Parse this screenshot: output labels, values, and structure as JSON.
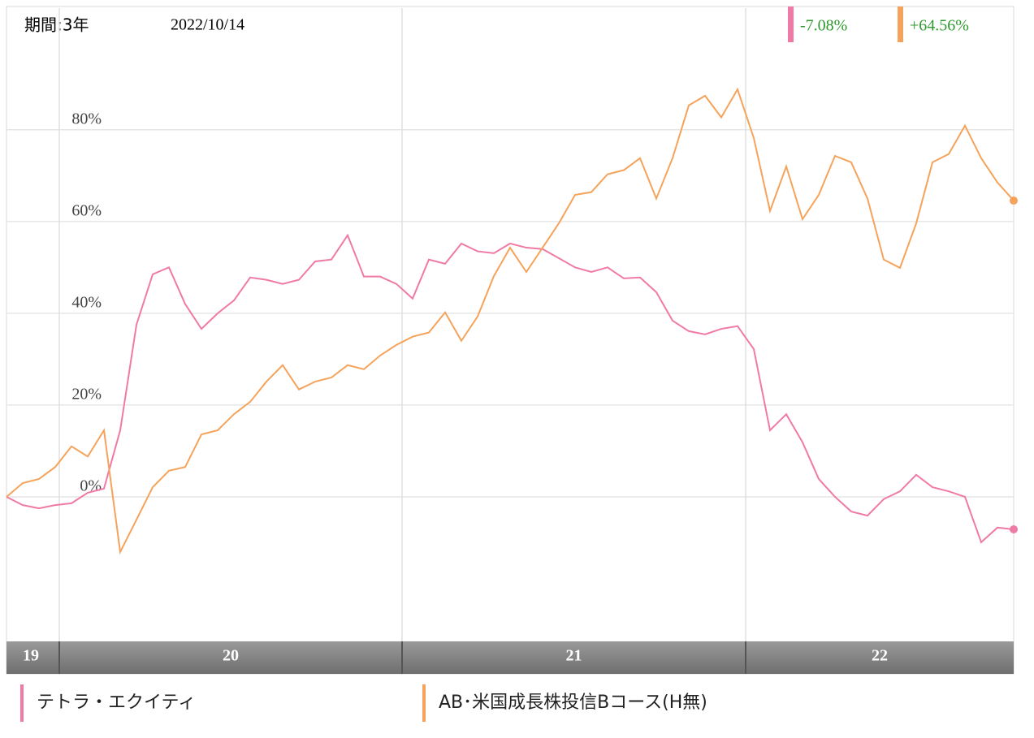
{
  "chart_data": {
    "type": "line",
    "period_label": "期間:3年",
    "date": "2022/10/14",
    "categories": [
      null,
      null,
      null,
      null,
      null,
      null,
      null,
      null,
      null,
      null,
      null,
      null,
      null,
      null,
      null,
      null,
      null,
      null,
      null,
      null,
      null,
      null,
      null,
      null,
      null,
      null,
      null,
      null,
      null,
      null,
      null,
      null,
      null,
      null,
      null,
      null,
      null,
      null,
      null,
      null,
      null,
      null,
      null,
      null,
      null,
      null,
      null,
      null,
      null,
      null,
      null,
      null,
      null,
      null,
      null,
      null,
      null,
      null,
      null,
      null,
      null,
      null,
      null
    ],
    "x_periods": [
      {
        "label": "19",
        "start": 0
      },
      {
        "label": "20",
        "start": 3.25
      },
      {
        "label": "21",
        "start": 24.35
      },
      {
        "label": "22",
        "start": 45.5
      }
    ],
    "ylim": [
      -31.5,
      106.5
    ],
    "yticks": [
      {
        "value": 0,
        "label": "0%"
      },
      {
        "value": 20,
        "label": "20%"
      },
      {
        "value": 40,
        "label": "40%"
      },
      {
        "value": 60,
        "label": "60%"
      },
      {
        "value": 80,
        "label": "80%"
      }
    ],
    "grid": true,
    "series": [
      {
        "name": "テトラ・エクイティ",
        "color": "#f07aa6",
        "value_label": "-7.08%",
        "values": [
          0,
          -1.8,
          -2.5,
          -1.8,
          -1.4,
          0.9,
          1.8,
          14.5,
          37.5,
          48.5,
          50,
          42,
          36.6,
          40,
          42.8,
          47.8,
          47.3,
          46.4,
          47.3,
          51.3,
          51.7,
          57,
          48,
          48,
          46.4,
          43.2,
          51.7,
          50.8,
          55.2,
          53.5,
          53.1,
          55.2,
          54.3,
          54,
          52,
          50,
          49,
          50,
          47.6,
          47.8,
          44.6,
          38.4,
          36.1,
          35.4,
          36.6,
          37.2,
          32.2,
          14.5,
          18,
          11.9,
          3.9,
          0,
          -3.2,
          -4.1,
          -0.5,
          1.2,
          4.8,
          2.1,
          1.2,
          0,
          -9.9,
          -6.7,
          -7.08
        ]
      },
      {
        "name": "AB･米国成長株投信Bコース(H無)",
        "color": "#f5a35a",
        "value_label": "+64.56%",
        "values": [
          0,
          3,
          3.9,
          6.5,
          11,
          8.8,
          14.5,
          -12,
          -5,
          2.1,
          5.7,
          6.5,
          13.6,
          14.5,
          18,
          20.7,
          25.1,
          28.7,
          23.4,
          25.1,
          26,
          28.7,
          27.8,
          30.8,
          33.1,
          34.9,
          35.8,
          40.2,
          34,
          39.3,
          48.1,
          54.3,
          49,
          54.3,
          59.6,
          65.8,
          66.4,
          70.3,
          71.2,
          73.8,
          65,
          73.8,
          85.3,
          87.4,
          82.7,
          88.8,
          78.2,
          62.3,
          72,
          60.5,
          65.8,
          74.3,
          72.9,
          65,
          51.7,
          49.9,
          59.6,
          72.9,
          74.7,
          80.9,
          73.8,
          68.5,
          64.56
        ]
      }
    ]
  }
}
